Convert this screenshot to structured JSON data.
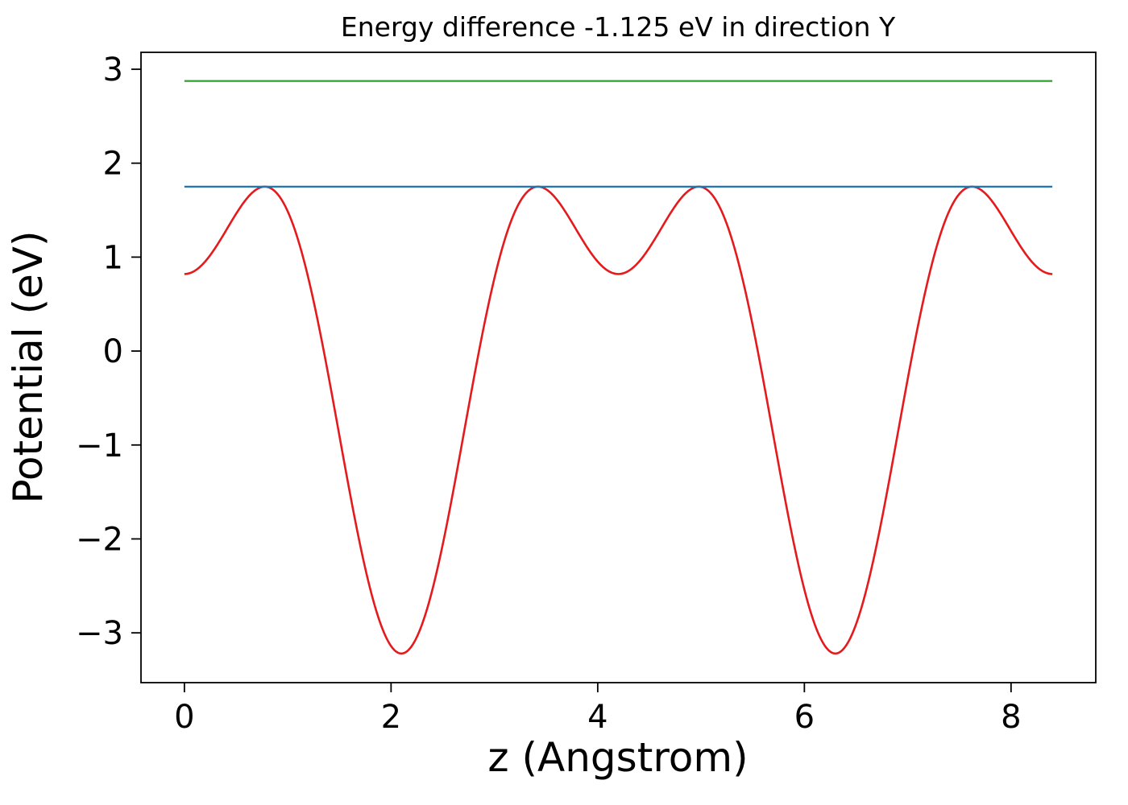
{
  "figure": {
    "background_color": "#ffffff",
    "spine_color": "#000000"
  },
  "chart_data": {
    "type": "line",
    "title": "Energy difference -1.125 eV in direction Y",
    "xlabel": "z (Angstrom)",
    "ylabel": "Potential (eV)",
    "xlim": [
      -0.42,
      8.82
    ],
    "ylim": [
      -3.53,
      3.18
    ],
    "xticks": [
      0,
      2,
      4,
      6,
      8
    ],
    "yticks": [
      -3,
      -2,
      -1,
      0,
      1,
      2,
      3
    ],
    "grid": false,
    "legend": null,
    "series": [
      {
        "name": "planar-averaged-potential",
        "kind": "periodic_curve",
        "color": "#e41a1c",
        "linewidth": 2.6,
        "x_range": [
          0,
          8.4
        ],
        "period": 4.2,
        "fourier_coefficients": {
          "a0": 0.075,
          "a1": 2.02,
          "a2": -1.275
        },
        "extrema": {
          "maxima_y": 1.75,
          "maxima_x": [
            0.78,
            3.42,
            4.98,
            7.62
          ],
          "deep_minima_y": -3.22,
          "deep_minima_x": [
            2.1,
            6.3
          ],
          "shallow_minima_y": 0.82,
          "shallow_minima_x": [
            0.0,
            4.2,
            8.4
          ]
        }
      },
      {
        "name": "reference-level-blue",
        "kind": "hline",
        "color": "#1f77b4",
        "linewidth": 2.2,
        "y": 1.75,
        "x_range": [
          0,
          8.4
        ]
      },
      {
        "name": "reference-level-green",
        "kind": "hline",
        "color": "#2ca02c",
        "linewidth": 2.2,
        "y": 2.875,
        "x_range": [
          0,
          8.4
        ]
      }
    ],
    "energy_difference_eV": -1.125,
    "direction": "Y"
  }
}
